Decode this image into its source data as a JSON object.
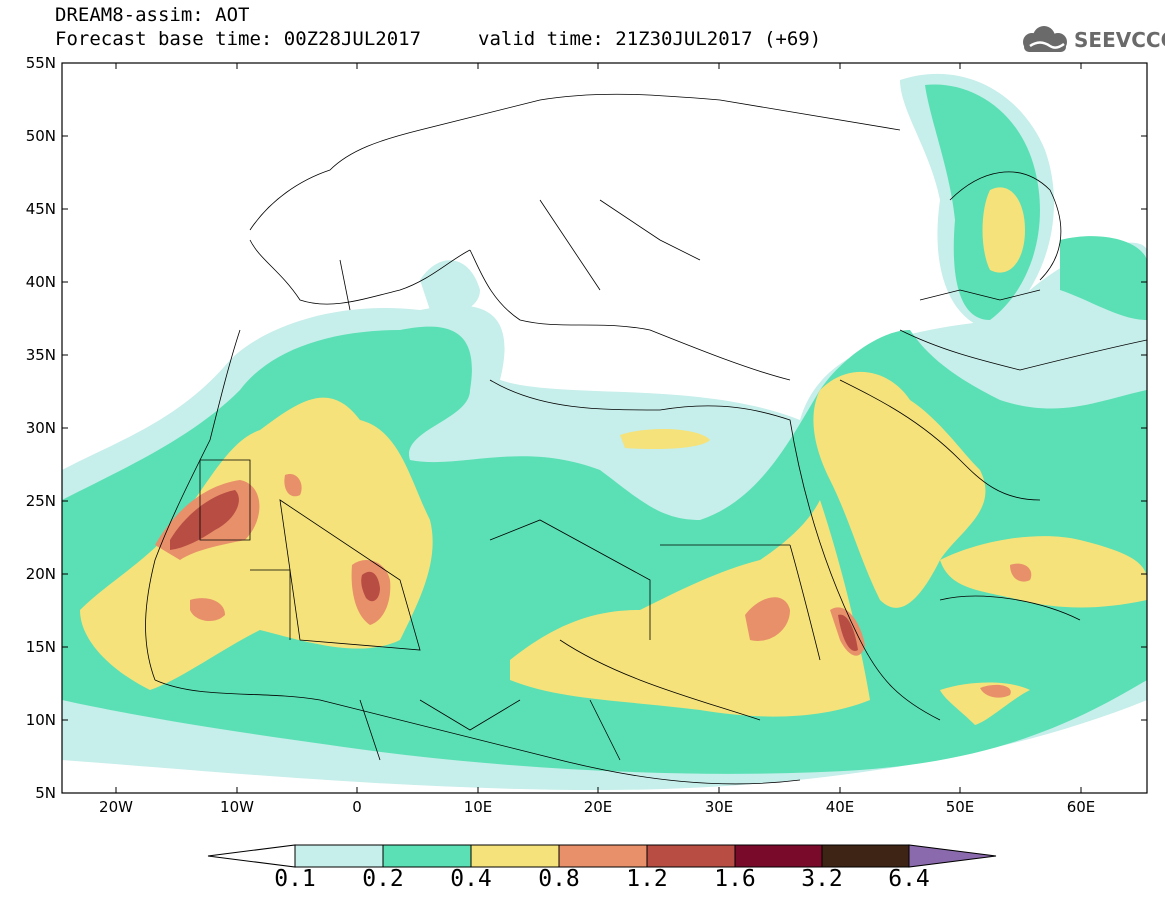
{
  "header": {
    "title_line": "DREAM8-assim: AOT",
    "base_time_line": "Forecast base time: 00Z28JUL2017",
    "valid_time_line": "valid time: 21Z30JUL2017 (+69)",
    "logo_text": "SEEVCCC"
  },
  "axes": {
    "lat_labels": [
      "55N",
      "50N",
      "45N",
      "40N",
      "35N",
      "30N",
      "25N",
      "20N",
      "15N",
      "10N",
      "5N"
    ],
    "lon_labels": [
      "20W",
      "10W",
      "0",
      "10E",
      "20E",
      "30E",
      "40E",
      "50E",
      "60E"
    ]
  },
  "colorbar": {
    "labels": [
      "0.1",
      "0.2",
      "0.4",
      "0.8",
      "1.2",
      "1.6",
      "3.2",
      "6.4"
    ],
    "colors": [
      "#c6eeea",
      "#5ae0b4",
      "#f5e27a",
      "#e8906a",
      "#b84d44",
      "#7a0a2a",
      "#3d2415",
      "#8a6aac"
    ]
  },
  "map": {
    "extent": {
      "lon_min": -25,
      "lon_max": 65,
      "lat_min": 5,
      "lat_max": 55
    },
    "field": "AOT",
    "background_color": "#ffffff",
    "boundary_color": "#000000"
  }
}
